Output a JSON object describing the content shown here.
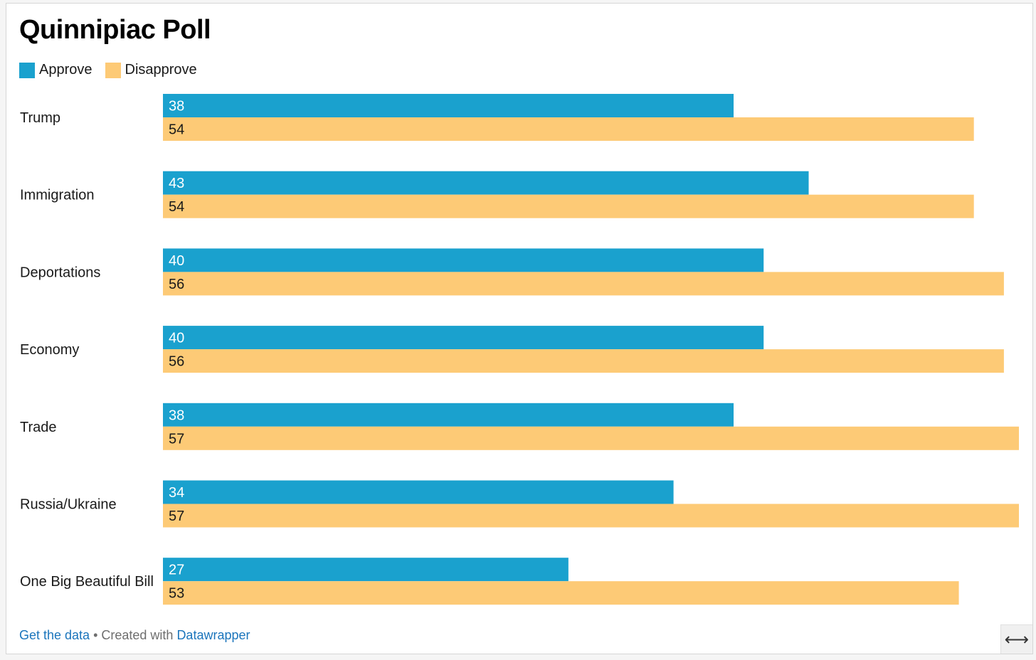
{
  "title": "Quinnipiac Poll",
  "legend": [
    {
      "label": "Approve",
      "color": "#1aa1ce"
    },
    {
      "label": "Disapprove",
      "color": "#fdca76"
    }
  ],
  "footer": {
    "data_link": "Get the data",
    "separator": " • Created with ",
    "tool_link": "Datawrapper"
  },
  "expand_icon": "expand-horizontal-icon",
  "chart_data": {
    "type": "bar",
    "orientation": "horizontal",
    "grid": false,
    "legend_position": "top-left",
    "xlim": [
      0,
      57
    ],
    "categories": [
      "Trump",
      "Immigration",
      "Deportations",
      "Economy",
      "Trade",
      "Russia/Ukraine",
      "One Big Beautiful Bill"
    ],
    "series": [
      {
        "name": "Approve",
        "color": "#1aa1ce",
        "label_color": "#ffffff",
        "values": [
          38,
          43,
          40,
          40,
          38,
          34,
          27
        ]
      },
      {
        "name": "Disapprove",
        "color": "#fdca76",
        "label_color": "#1a1a1a",
        "values": [
          54,
          54,
          56,
          56,
          57,
          57,
          53
        ]
      }
    ]
  }
}
